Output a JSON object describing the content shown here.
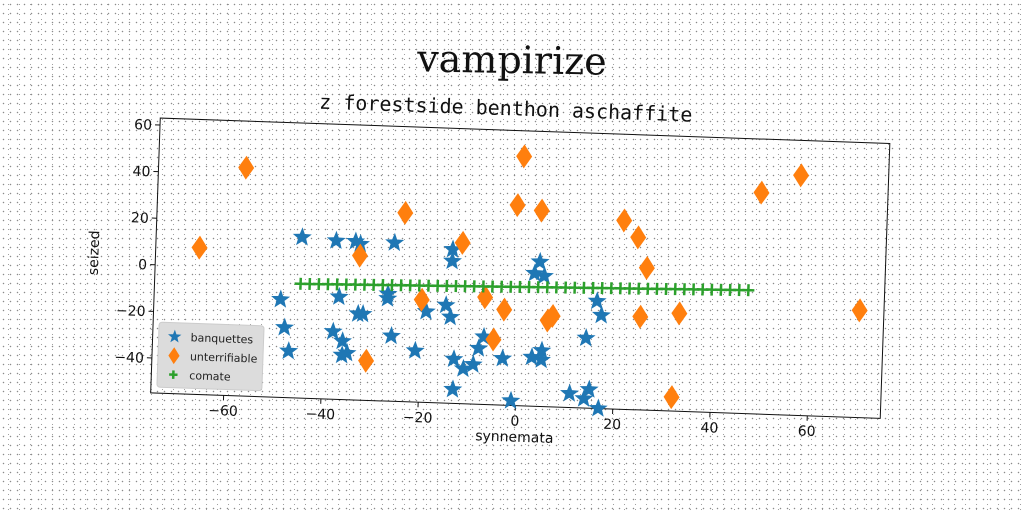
{
  "suptitle": "vampirize",
  "chart_data": {
    "type": "scatter",
    "title": "z forestside benthon aschaffite",
    "xlabel": "synnemata",
    "ylabel": "seized",
    "xlim": [
      -75,
      75
    ],
    "ylim": [
      -55,
      63
    ],
    "xticks": [
      -60,
      -40,
      -20,
      0,
      20,
      40,
      60
    ],
    "yticks": [
      -40,
      -20,
      0,
      20,
      40,
      60
    ],
    "grid": false,
    "legend_position": "lower-left",
    "series": [
      {
        "name": "banquettes",
        "marker": "star",
        "color": "#1f77b4",
        "points": [
          [
            -45,
            14
          ],
          [
            -38,
            13
          ],
          [
            -34,
            13
          ],
          [
            -33,
            12
          ],
          [
            -26,
            13
          ],
          [
            -14,
            11
          ],
          [
            -14,
            6
          ],
          [
            4,
            7
          ],
          [
            5,
            1
          ],
          [
            3,
            2
          ],
          [
            -49,
            -13
          ],
          [
            -48,
            -25
          ],
          [
            -47,
            -35
          ],
          [
            -37,
            -11
          ],
          [
            -38,
            -26
          ],
          [
            -36,
            -30
          ],
          [
            -35,
            -35
          ],
          [
            -36,
            -36
          ],
          [
            -33,
            -18
          ],
          [
            -32,
            -18
          ],
          [
            -27,
            -9
          ],
          [
            -27,
            -11
          ],
          [
            -26,
            -27
          ],
          [
            -21,
            -33
          ],
          [
            -19,
            -16
          ],
          [
            -15,
            -13
          ],
          [
            -14,
            -18
          ],
          [
            -13,
            -36
          ],
          [
            -11,
            -40
          ],
          [
            -9,
            -38
          ],
          [
            -8,
            -31
          ],
          [
            -7,
            -26
          ],
          [
            -13,
            -49
          ],
          [
            -3,
            -35
          ],
          [
            3,
            -34
          ],
          [
            5,
            -31
          ],
          [
            5,
            -35
          ],
          [
            14,
            -25
          ],
          [
            16,
            -9
          ],
          [
            17,
            -15
          ],
          [
            11,
            -49
          ],
          [
            14,
            -51
          ],
          [
            15,
            -47
          ],
          [
            17,
            -55
          ],
          [
            -1,
            -53
          ]
        ]
      },
      {
        "name": "unterrifiable",
        "marker": "diamond",
        "color": "#ff7f0e",
        "points": [
          [
            -66,
            8
          ],
          [
            -57,
            43
          ],
          [
            -33,
            7
          ],
          [
            -31,
            -38
          ],
          [
            -24,
            26
          ],
          [
            -20,
            -11
          ],
          [
            -12,
            14
          ],
          [
            -1,
            31
          ],
          [
            0,
            52
          ],
          [
            4,
            29
          ],
          [
            -7,
            -9
          ],
          [
            -5,
            -27
          ],
          [
            -3,
            -14
          ],
          [
            6,
            -18
          ],
          [
            7,
            -16
          ],
          [
            21,
            26
          ],
          [
            24,
            19
          ],
          [
            26,
            6
          ],
          [
            25,
            -15
          ],
          [
            33,
            -13
          ],
          [
            49,
            40
          ],
          [
            57,
            48
          ],
          [
            70,
            -9
          ],
          [
            32,
            -49
          ]
        ]
      },
      {
        "name": "comate",
        "marker": "plus",
        "color": "#2ca02c",
        "x_from": -45,
        "x_to": 47,
        "count": 50,
        "y_from": -6,
        "y_to": -2
      }
    ]
  }
}
